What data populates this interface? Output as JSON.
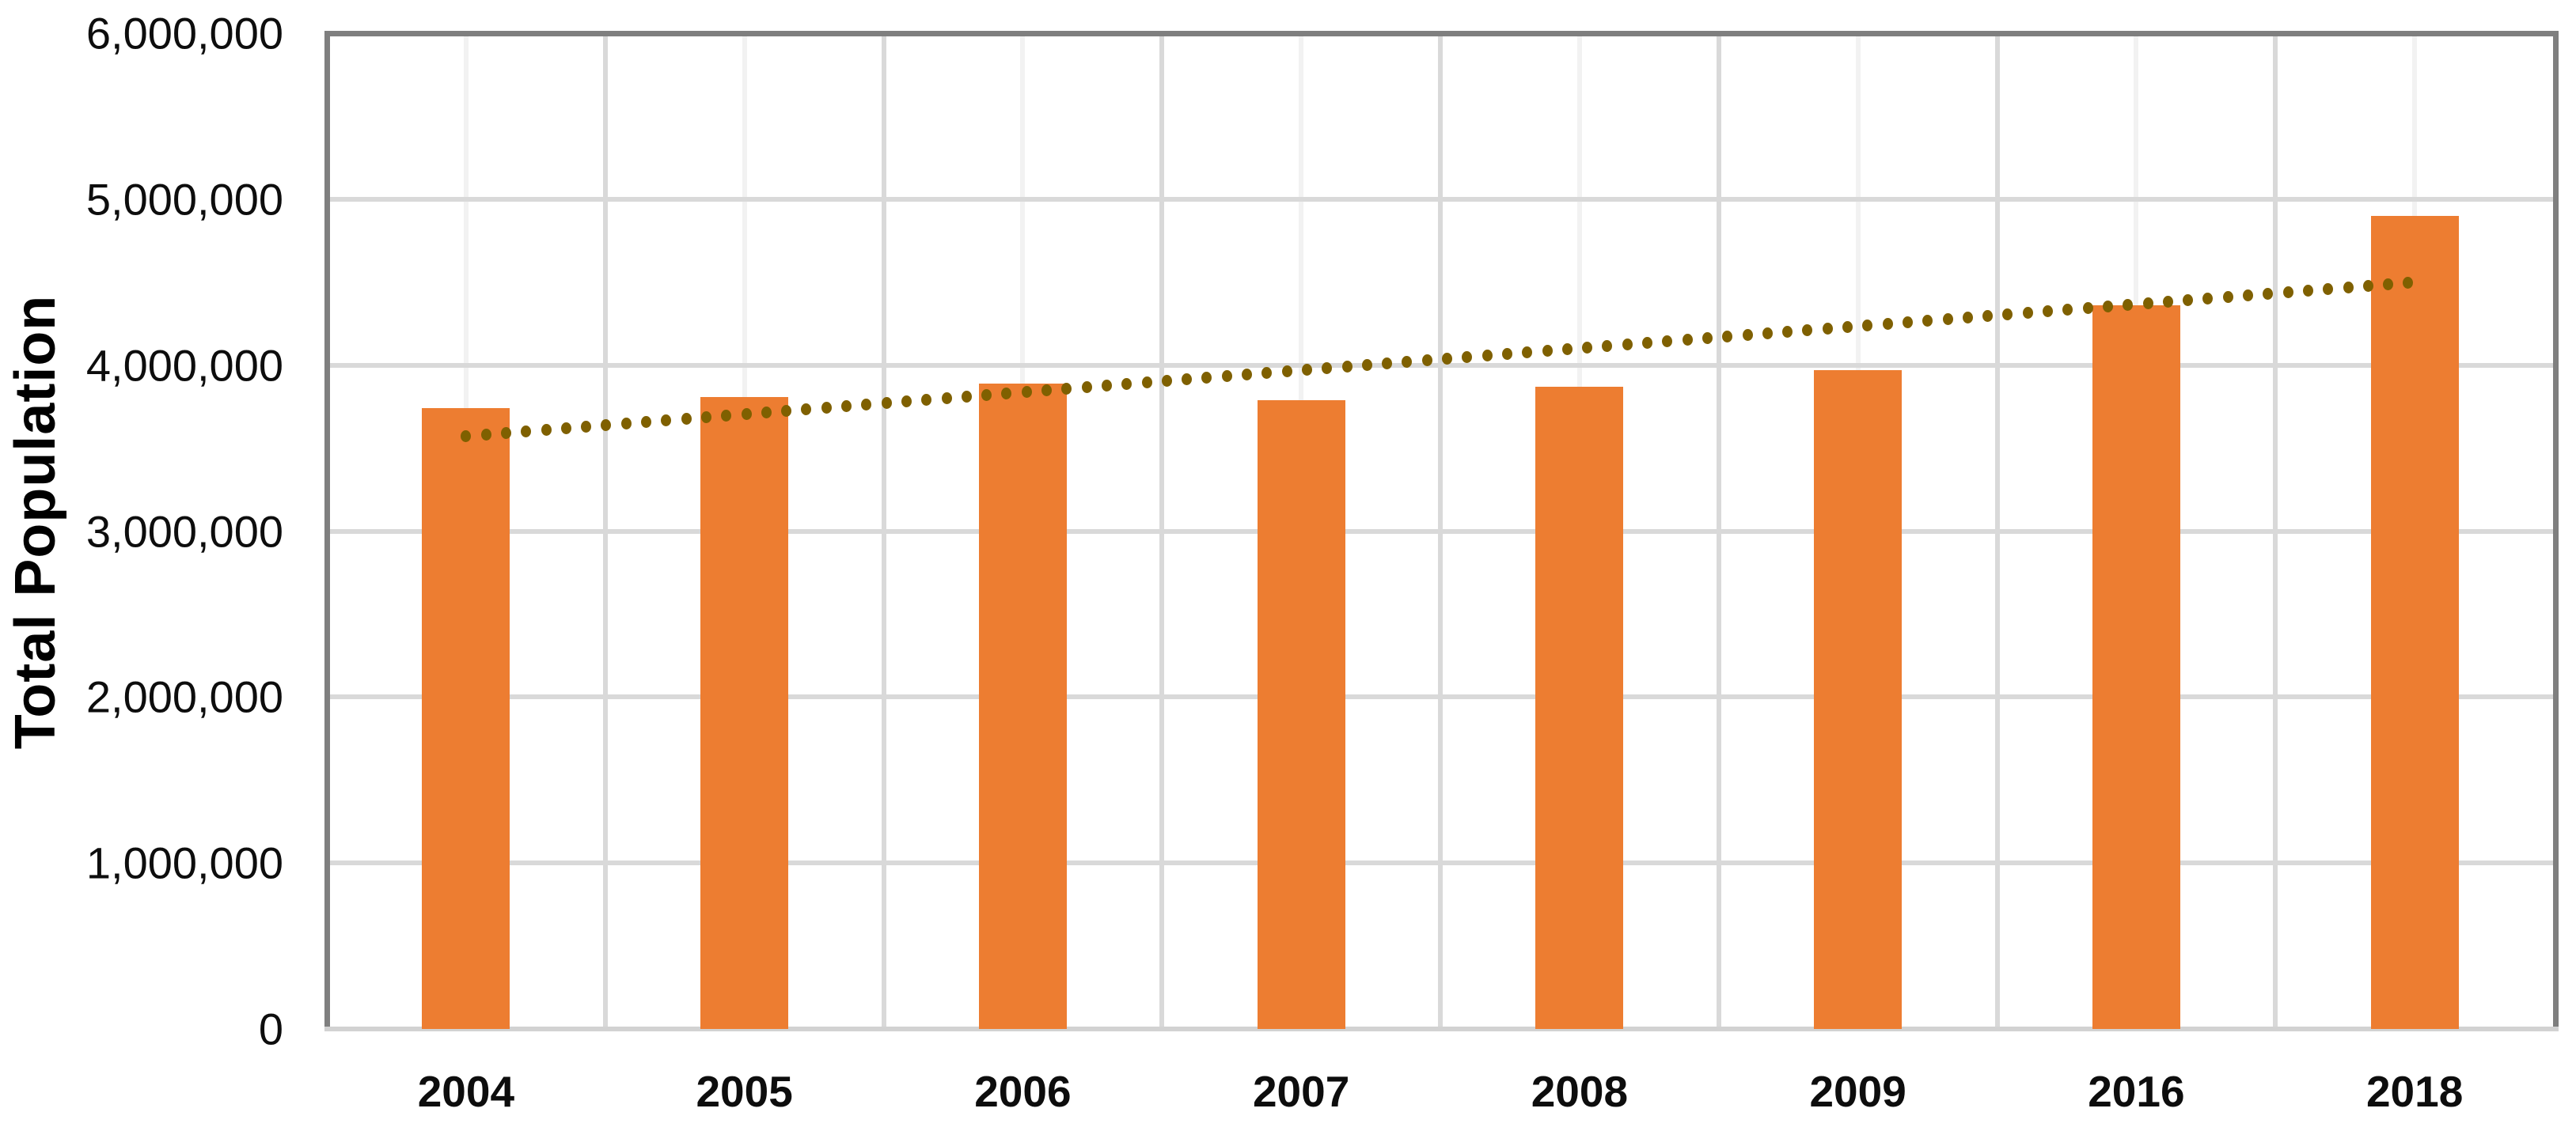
{
  "chart_data": {
    "type": "bar",
    "title": "",
    "xlabel": "",
    "ylabel": "Total Population",
    "categories": [
      "2004",
      "2005",
      "2006",
      "2007",
      "2008",
      "2009",
      "2016",
      "2018"
    ],
    "series": [
      {
        "name": "Total Population",
        "values": [
          3740000,
          3810000,
          3890000,
          3790000,
          3870000,
          3970000,
          4360000,
          4900000
        ]
      }
    ],
    "ylim": [
      0,
      6000000
    ],
    "y_tick_step": 1000000,
    "y_tick_labels": [
      "0",
      "1,000,000",
      "2,000,000",
      "3,000,000",
      "4,000,000",
      "5,000,000",
      "6,000,000"
    ],
    "grid": {
      "horizontal_major": true,
      "vertical_major_at_category_boundaries": true,
      "vertical_minor_at_category_centers": true
    },
    "trendline": {
      "type": "linear",
      "style": "dotted",
      "start_value": 3570000,
      "end_value": 4500000
    },
    "legend_position": "none",
    "colors": {
      "bar": "#ED7D31",
      "trendline": "#7F6000",
      "grid_major": "#D9D9D9",
      "grid_minor": "#F2F2F2",
      "plot_border": "#7F7F7F",
      "baseline": "#D2D2D2",
      "text": "#0d0d0d"
    }
  }
}
